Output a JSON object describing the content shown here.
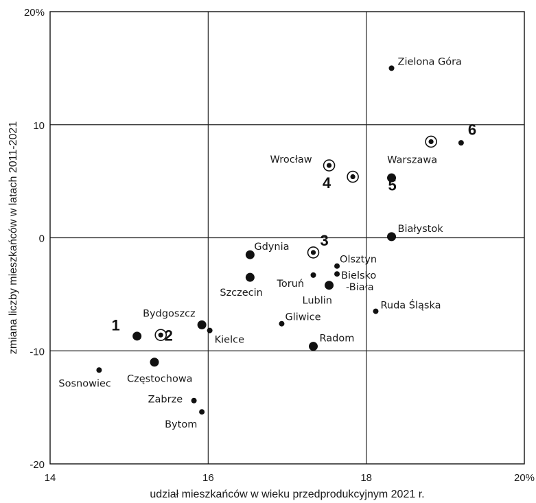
{
  "chart_data": {
    "type": "scatter",
    "xlabel": "udział mieszkańców w wieku przedprodukcyjnym 2021 r.",
    "ylabel": "zmiana liczby mieszkańców w latach 2011-2021",
    "xlim": [
      14,
      20
    ],
    "ylim": [
      -20,
      20
    ],
    "xticks": [
      {
        "value": 14,
        "label": "14"
      },
      {
        "value": 16,
        "label": "16"
      },
      {
        "value": 18,
        "label": "18"
      },
      {
        "value": 20,
        "label": "20%"
      }
    ],
    "yticks": [
      {
        "value": 20,
        "label": "20%"
      },
      {
        "value": 10,
        "label": "10"
      },
      {
        "value": 0,
        "label": "0"
      },
      {
        "value": -10,
        "label": "-10"
      },
      {
        "value": -20,
        "label": "-20"
      }
    ],
    "grid": true,
    "points": [
      {
        "label": "Zielona Góra",
        "x": 18.32,
        "y": 15.0,
        "marker": "small"
      },
      {
        "label": "Warszawa",
        "x": 18.82,
        "y": 8.5,
        "marker": "ring"
      },
      {
        "label": "",
        "x": 19.2,
        "y": 8.4,
        "marker": "small"
      },
      {
        "label": "Wrocław",
        "x": 17.53,
        "y": 6.4,
        "marker": "ring"
      },
      {
        "label": "",
        "x": 17.83,
        "y": 5.4,
        "marker": "ring"
      },
      {
        "label": "",
        "x": 18.32,
        "y": 5.3,
        "marker": "large"
      },
      {
        "label": "Białystok",
        "x": 18.32,
        "y": 0.1,
        "marker": "large"
      },
      {
        "label": "Gdynia",
        "x": 16.53,
        "y": -1.5,
        "marker": "large"
      },
      {
        "label": "",
        "x": 17.33,
        "y": -1.3,
        "marker": "ring"
      },
      {
        "label": "Olsztyn",
        "x": 17.63,
        "y": -2.5,
        "marker": "small"
      },
      {
        "label": "Bielsko -Biała",
        "x": 17.63,
        "y": -3.2,
        "marker": "small"
      },
      {
        "label": "Toruń",
        "x": 17.33,
        "y": -3.3,
        "marker": "small"
      },
      {
        "label": "Szczecin",
        "x": 16.53,
        "y": -3.5,
        "marker": "large"
      },
      {
        "label": "Lublin",
        "x": 17.53,
        "y": -4.2,
        "marker": "large"
      },
      {
        "label": "Ruda Śląska",
        "x": 18.12,
        "y": -6.5,
        "marker": "small"
      },
      {
        "label": "Gliwice",
        "x": 16.93,
        "y": -7.6,
        "marker": "small"
      },
      {
        "label": "Bydgoszcz",
        "x": 15.92,
        "y": -7.7,
        "marker": "large"
      },
      {
        "label": "Kielce",
        "x": 16.02,
        "y": -8.2,
        "marker": "small"
      },
      {
        "label": "",
        "x": 15.1,
        "y": -8.7,
        "marker": "large"
      },
      {
        "label": "",
        "x": 15.4,
        "y": -8.6,
        "marker": "ring"
      },
      {
        "label": "Radom",
        "x": 17.33,
        "y": -9.6,
        "marker": "large"
      },
      {
        "label": "Częstochowa",
        "x": 15.32,
        "y": -11.0,
        "marker": "large"
      },
      {
        "label": "Sosnowiec",
        "x": 14.62,
        "y": -11.7,
        "marker": "small"
      },
      {
        "label": "Zabrze",
        "x": 15.82,
        "y": -14.4,
        "marker": "small"
      },
      {
        "label": "Bytom",
        "x": 15.92,
        "y": -15.4,
        "marker": "small"
      }
    ],
    "numbers": [
      {
        "text": "1",
        "x": 14.83,
        "y": -8.2
      },
      {
        "text": "2",
        "x": 15.5,
        "y": -9.1
      },
      {
        "text": "3",
        "x": 17.47,
        "y": -0.7
      },
      {
        "text": "4",
        "x": 17.5,
        "y": 4.4
      },
      {
        "text": "5",
        "x": 18.33,
        "y": 4.2
      },
      {
        "text": "6",
        "x": 19.34,
        "y": 9.1
      }
    ]
  }
}
